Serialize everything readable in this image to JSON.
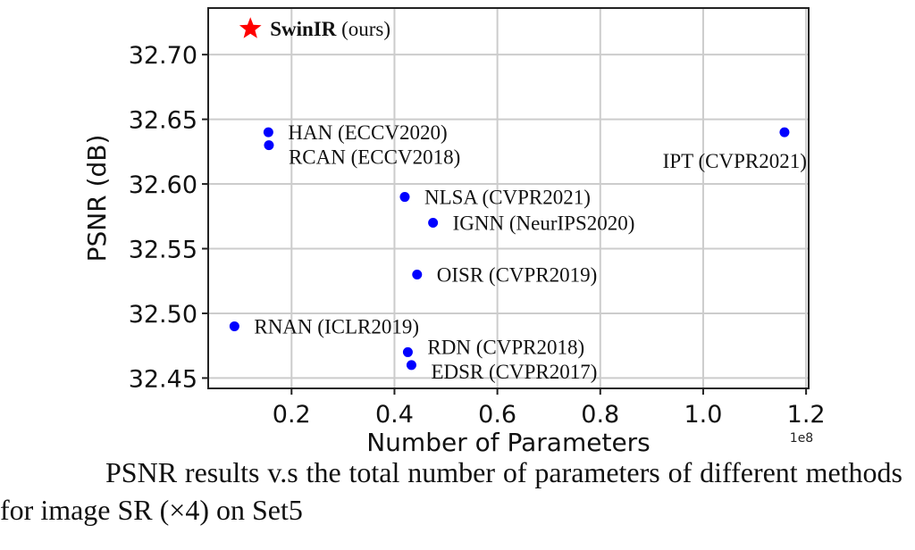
{
  "chart_data": {
    "type": "scatter",
    "xlabel": "Number of Parameters",
    "ylabel": "PSNR (dB)",
    "x_offset_label": "1e8",
    "xlim": [
      0.038,
      1.205
    ],
    "ylim": [
      32.442,
      32.736
    ],
    "xticks": [
      0.2,
      0.4,
      0.6,
      0.8,
      1.0,
      1.2
    ],
    "xtick_labels": [
      "0.2",
      "0.4",
      "0.6",
      "0.8",
      "1.0",
      "1.2"
    ],
    "yticks": [
      32.45,
      32.5,
      32.55,
      32.6,
      32.65,
      32.7
    ],
    "ytick_labels": [
      "32.45",
      "32.50",
      "32.55",
      "32.60",
      "32.65",
      "32.70"
    ],
    "grid": true,
    "colors": {
      "ours": "#ff0000",
      "others": "#0000ff",
      "grid": "#cccccc"
    },
    "points": [
      {
        "name": "SwinIR",
        "suffix": " (ours)",
        "x": 0.12,
        "y": 32.72,
        "marker": "star",
        "bold": true
      },
      {
        "name": "HAN (ECCV2020)",
        "x": 0.155,
        "y": 32.64,
        "marker": "circle"
      },
      {
        "name": "RCAN (ECCV2018)",
        "x": 0.156,
        "y": 32.63,
        "marker": "circle"
      },
      {
        "name": "IPT (CVPR2021)",
        "x": 1.158,
        "y": 32.64,
        "marker": "circle",
        "label_pos": "below-left"
      },
      {
        "name": "NLSA (CVPR2021)",
        "x": 0.42,
        "y": 32.59,
        "marker": "circle"
      },
      {
        "name": "IGNN (NeurIPS2020)",
        "x": 0.475,
        "y": 32.57,
        "marker": "circle"
      },
      {
        "name": "OISR (CVPR2019)",
        "x": 0.444,
        "y": 32.53,
        "marker": "circle"
      },
      {
        "name": "RNAN (ICLR2019)",
        "x": 0.089,
        "y": 32.49,
        "marker": "circle"
      },
      {
        "name": "RDN (CVPR2018)",
        "x": 0.426,
        "y": 32.47,
        "marker": "circle"
      },
      {
        "name": "EDSR (CVPR2017)",
        "x": 0.433,
        "y": 32.46,
        "marker": "circle"
      }
    ]
  },
  "caption": "PSNR results v.s the total number of parameters of different methods for image SR (×4) on Set5"
}
